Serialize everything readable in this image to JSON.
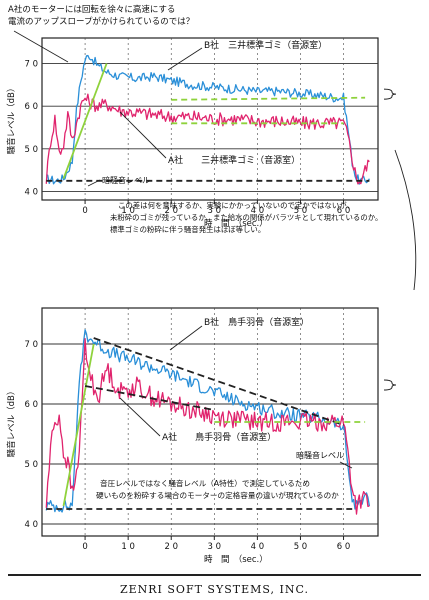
{
  "chart_data": [
    {
      "type": "line",
      "ylabel": "騒音レベル（dB）",
      "xlabel": "時　間　（sec.）",
      "xlim": [
        -10,
        68
      ],
      "ylim": [
        38,
        76
      ],
      "xticks": [
        0,
        10,
        20,
        30,
        40,
        50,
        60
      ],
      "xtick_labels": [
        "0",
        "1 0",
        "2 0",
        "3 0",
        "4 0",
        "5 0",
        "6 0"
      ],
      "yticks": [
        40,
        50,
        60,
        70
      ],
      "ytick_labels": [
        "4 0",
        "5 0",
        "6 0",
        "7 0"
      ],
      "grid": true,
      "top_note_lines": [
        "A社のモーターには回転を徐々に高速にする",
        "電流のアップスロープがかけられているのでは？"
      ],
      "series_labels": {
        "b": "B社　三井標準ゴミ（音源室）",
        "a": "A社　　三井標準ゴミ（音源室）",
        "background": "暗騒音レベル"
      },
      "comment_lines": [
        "この差は何を意味するか、実験にかかっていないので定かではないが、",
        "未粉砕のゴミが残っているか、また給水の関係がバラツキとして現れているのか。",
        "標準ゴミの粉砕に伴う騒音発生はほぼ等しい。"
      ],
      "series": [
        {
          "key": "b",
          "color": "#2a8fd8",
          "x": [
            -9,
            -7,
            -5,
            -3,
            -2,
            -1,
            0,
            1,
            3,
            5,
            8,
            12,
            16,
            20,
            25,
            30,
            35,
            40,
            45,
            50,
            55,
            58,
            60,
            61,
            62,
            63,
            64,
            65,
            66
          ],
          "y": [
            43,
            42.5,
            43,
            47,
            59,
            66,
            71,
            72,
            69.5,
            68,
            67,
            66.5,
            67,
            66,
            65,
            64.5,
            64,
            63.5,
            63.5,
            63,
            62.5,
            62,
            62,
            55,
            47,
            43,
            42.5,
            42.5,
            43
          ]
        },
        {
          "key": "a",
          "color": "#e0246d",
          "x": [
            -9,
            -8,
            -7,
            -6,
            -5,
            -4,
            -3,
            -2,
            -1,
            0,
            1,
            3,
            5,
            8,
            12,
            16,
            20,
            25,
            30,
            35,
            40,
            45,
            50,
            55,
            58,
            60,
            61,
            62,
            63,
            64,
            65,
            66
          ],
          "y": [
            43,
            52,
            57,
            49,
            51,
            58,
            52,
            56,
            60,
            62,
            61,
            60,
            60.5,
            59,
            58.5,
            58,
            57.5,
            57.5,
            57,
            57,
            56.5,
            56.5,
            56,
            56,
            56,
            56,
            53,
            48,
            43,
            42.5,
            45,
            47
          ]
        },
        {
          "key": "slope",
          "color": "#8fd23c",
          "x": [
            -5,
            5
          ],
          "y": [
            43,
            70
          ]
        },
        {
          "key": "b_ref",
          "color": "#8fd23c",
          "dash": "6,4",
          "x": [
            20,
            65
          ],
          "y": [
            61.5,
            62
          ]
        },
        {
          "key": "a_ref",
          "color": "#8fd23c",
          "dash": "6,4",
          "x": [
            20,
            60
          ],
          "y": [
            56,
            56
          ]
        },
        {
          "key": "bg_ref",
          "color": "#222222",
          "dash": "6,4",
          "x": [
            -9,
            66
          ],
          "y": [
            42.5,
            42.5
          ]
        }
      ]
    },
    {
      "type": "line",
      "ylabel": "騒音レベル（dB）",
      "xlabel": "時　間　（sec.）",
      "xlim": [
        -10,
        68
      ],
      "ylim": [
        38,
        76
      ],
      "xticks": [
        0,
        10,
        20,
        30,
        40,
        50,
        60
      ],
      "xtick_labels": [
        "0",
        "1 0",
        "2 0",
        "3 0",
        "4 0",
        "5 0",
        "6 0"
      ],
      "yticks": [
        40,
        50,
        60,
        70
      ],
      "ytick_labels": [
        "4 0",
        "5 0",
        "6 0",
        "7 0"
      ],
      "grid": true,
      "series_labels": {
        "b": "B社　鳥手羽骨（音源室）",
        "a": "A社　　鳥手羽骨（音源室）",
        "background": "暗騒音レベル"
      },
      "comment_lines": [
        "音圧レベルではなく騒音レベル（A特性）で測定しているため",
        "硬いものを粉砕する場合のモーターの定格容量の違いが現れているのか"
      ],
      "series": [
        {
          "key": "b",
          "color": "#2a8fd8",
          "x": [
            -9,
            -6,
            -3,
            -2,
            -1,
            0,
            1,
            3,
            5,
            8,
            12,
            16,
            20,
            25,
            30,
            35,
            40,
            45,
            50,
            55,
            58,
            60,
            61,
            62,
            63,
            64,
            65,
            66
          ],
          "y": [
            43,
            43,
            43,
            56,
            66,
            72,
            71,
            70,
            69,
            68,
            67,
            66,
            65,
            63.5,
            62,
            60.5,
            59.5,
            58.5,
            58,
            57.5,
            57,
            56,
            50,
            44,
            43,
            44,
            45,
            43
          ]
        },
        {
          "key": "a",
          "color": "#e0246d",
          "x": [
            -9,
            -8,
            -7,
            -6,
            -5,
            -4,
            -3,
            -2,
            -1,
            0,
            1,
            3,
            5,
            8,
            12,
            16,
            20,
            25,
            30,
            35,
            40,
            45,
            50,
            55,
            58,
            60,
            61,
            62,
            63,
            64,
            65,
            66
          ],
          "y": [
            43,
            53,
            57,
            58,
            52,
            50,
            45,
            48,
            56,
            70,
            65,
            61,
            66,
            62,
            63,
            61,
            60,
            59,
            58,
            57.5,
            57,
            57,
            57,
            57,
            57,
            57,
            52,
            46,
            43,
            44,
            44,
            43
          ]
        },
        {
          "key": "slope",
          "color": "#8fd23c",
          "x": [
            -5,
            2
          ],
          "y": [
            43,
            70
          ]
        },
        {
          "key": "b_trend",
          "color": "#222222",
          "dash": "7,4",
          "x": [
            2,
            60
          ],
          "y": [
            71,
            56.5
          ]
        },
        {
          "key": "a_trend",
          "color": "#222222",
          "dash": "7,4",
          "x": [
            0,
            30
          ],
          "y": [
            63,
            59
          ]
        },
        {
          "key": "ref",
          "color": "#8fd23c",
          "dash": "6,4",
          "x": [
            30,
            65
          ],
          "y": [
            57,
            57
          ]
        },
        {
          "key": "bg_ref",
          "color": "#222222",
          "dash": "6,4",
          "x": [
            -9,
            62
          ],
          "y": [
            42.5,
            42.5
          ]
        }
      ]
    }
  ],
  "footer": {
    "company": "ZENRI SOFT SYSTEMS, INC."
  }
}
